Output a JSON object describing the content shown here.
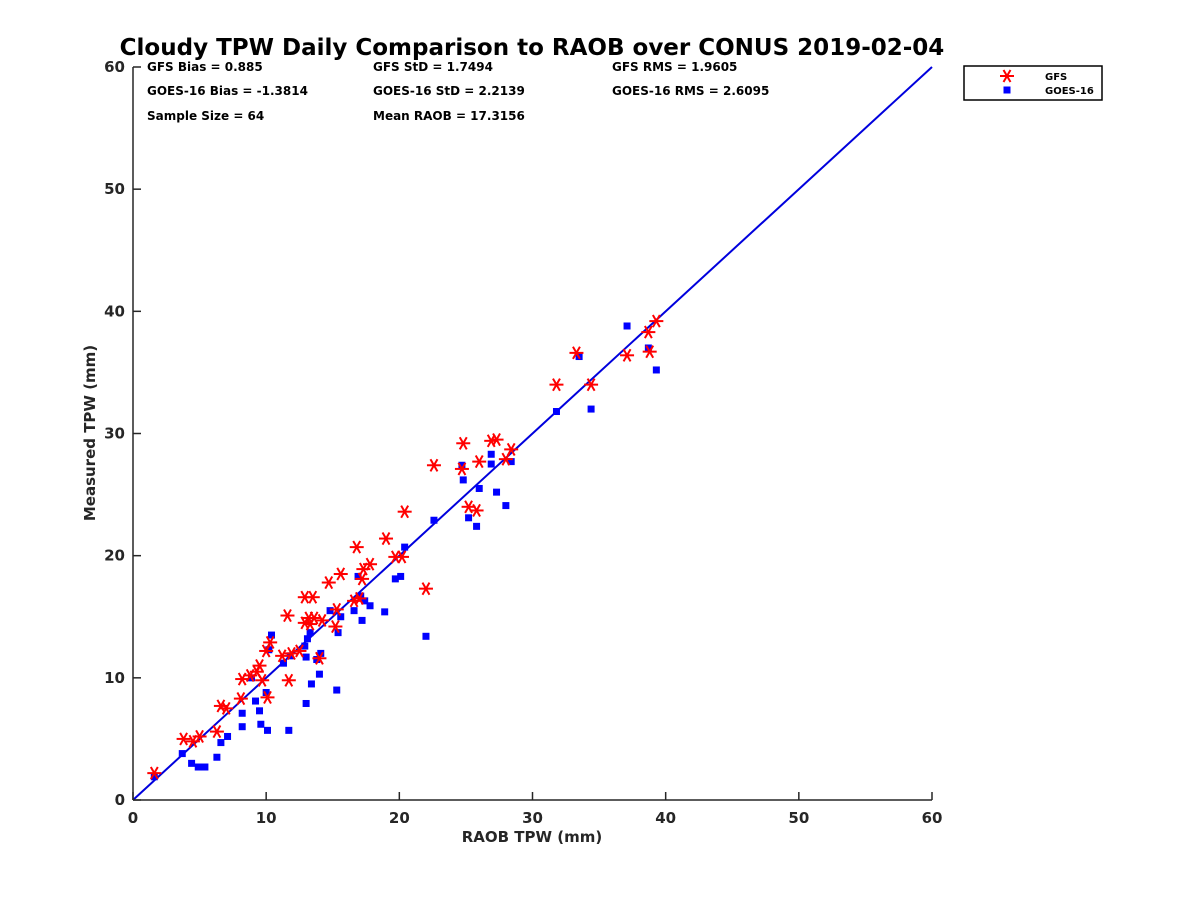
{
  "chart_data": {
    "type": "scatter",
    "title": "Cloudy TPW Daily Comparison to RAOB over CONUS 2019-02-04",
    "xlabel": "RAOB TPW (mm)",
    "ylabel": "Measured TPW (mm)",
    "xlim": [
      0,
      60
    ],
    "ylim": [
      0,
      60
    ],
    "xticks": [
      0,
      10,
      20,
      30,
      40,
      50,
      60
    ],
    "yticks": [
      0,
      10,
      20,
      30,
      40,
      50,
      60
    ],
    "grid": false,
    "legend_position": "outside-top-right",
    "reference_line": {
      "from": [
        0,
        0
      ],
      "to": [
        60,
        60
      ],
      "color": "#0000dd"
    },
    "stats": [
      "GFS Bias = 0.885",
      "GFS StD = 1.7494",
      "GFS RMS = 1.9605",
      "GOES-16 Bias = -1.3814",
      "GOES-16 StD = 2.2139",
      "GOES-16 RMS = 2.6095",
      "Sample Size = 64",
      "Mean RAOB = 17.3156"
    ],
    "series": [
      {
        "name": "GFS",
        "marker": "asterisk",
        "color": "#ff0000",
        "points": [
          [
            1.6,
            2.2
          ],
          [
            3.8,
            5.0
          ],
          [
            4.5,
            4.8
          ],
          [
            5.0,
            5.2
          ],
          [
            6.3,
            5.6
          ],
          [
            6.6,
            7.7
          ],
          [
            7.0,
            7.5
          ],
          [
            8.1,
            8.3
          ],
          [
            8.2,
            9.9
          ],
          [
            8.8,
            10.2
          ],
          [
            9.3,
            10.5
          ],
          [
            9.5,
            11.0
          ],
          [
            9.7,
            9.8
          ],
          [
            10.0,
            12.2
          ],
          [
            10.1,
            8.4
          ],
          [
            10.3,
            12.9
          ],
          [
            11.2,
            11.8
          ],
          [
            11.6,
            15.1
          ],
          [
            11.7,
            9.8
          ],
          [
            11.9,
            12.0
          ],
          [
            12.5,
            12.2
          ],
          [
            12.9,
            14.5
          ],
          [
            12.9,
            16.6
          ],
          [
            13.2,
            14.9
          ],
          [
            13.3,
            14.4
          ],
          [
            13.5,
            16.6
          ],
          [
            13.6,
            14.9
          ],
          [
            14.0,
            11.6
          ],
          [
            14.2,
            14.7
          ],
          [
            14.7,
            17.8
          ],
          [
            15.2,
            14.2
          ],
          [
            15.3,
            15.6
          ],
          [
            15.6,
            18.5
          ],
          [
            16.6,
            16.3
          ],
          [
            16.8,
            20.7
          ],
          [
            17.0,
            16.5
          ],
          [
            17.2,
            18.1
          ],
          [
            17.3,
            18.9
          ],
          [
            17.8,
            19.3
          ],
          [
            19.0,
            21.4
          ],
          [
            19.7,
            19.9
          ],
          [
            20.2,
            19.9
          ],
          [
            20.4,
            23.6
          ],
          [
            22.0,
            17.3
          ],
          [
            22.6,
            27.4
          ],
          [
            24.7,
            27.1
          ],
          [
            24.8,
            29.2
          ],
          [
            25.2,
            24.0
          ],
          [
            25.8,
            23.7
          ],
          [
            26.0,
            27.7
          ],
          [
            26.9,
            29.4
          ],
          [
            27.3,
            29.5
          ],
          [
            28.0,
            27.9
          ],
          [
            28.4,
            28.7
          ],
          [
            31.8,
            34.0
          ],
          [
            33.3,
            36.6
          ],
          [
            34.4,
            34.0
          ],
          [
            37.1,
            36.4
          ],
          [
            38.7,
            38.3
          ],
          [
            38.8,
            36.7
          ],
          [
            39.3,
            39.2
          ]
        ]
      },
      {
        "name": "GOES-16",
        "marker": "square",
        "color": "#0000ff",
        "points": [
          [
            1.6,
            1.9
          ],
          [
            3.7,
            3.8
          ],
          [
            4.4,
            3.0
          ],
          [
            4.9,
            2.7
          ],
          [
            5.4,
            2.7
          ],
          [
            6.3,
            3.5
          ],
          [
            6.6,
            4.7
          ],
          [
            7.1,
            5.2
          ],
          [
            8.2,
            6.0
          ],
          [
            8.2,
            7.1
          ],
          [
            8.9,
            10.0
          ],
          [
            9.2,
            8.1
          ],
          [
            9.5,
            7.3
          ],
          [
            9.6,
            6.2
          ],
          [
            10.0,
            8.8
          ],
          [
            10.1,
            5.7
          ],
          [
            10.2,
            12.3
          ],
          [
            10.4,
            13.5
          ],
          [
            11.3,
            11.2
          ],
          [
            11.7,
            5.7
          ],
          [
            11.8,
            11.8
          ],
          [
            12.9,
            12.6
          ],
          [
            13.0,
            11.7
          ],
          [
            13.0,
            7.9
          ],
          [
            13.1,
            13.2
          ],
          [
            13.3,
            13.7
          ],
          [
            13.4,
            9.5
          ],
          [
            13.8,
            11.5
          ],
          [
            14.0,
            10.3
          ],
          [
            14.1,
            12.0
          ],
          [
            14.8,
            15.5
          ],
          [
            15.3,
            9.0
          ],
          [
            15.4,
            13.7
          ],
          [
            15.6,
            15.0
          ],
          [
            16.6,
            15.5
          ],
          [
            16.9,
            18.3
          ],
          [
            17.1,
            16.7
          ],
          [
            17.2,
            14.7
          ],
          [
            17.4,
            16.3
          ],
          [
            17.8,
            15.9
          ],
          [
            18.9,
            15.4
          ],
          [
            19.7,
            18.1
          ],
          [
            20.1,
            18.3
          ],
          [
            20.4,
            20.7
          ],
          [
            22.0,
            13.4
          ],
          [
            22.6,
            22.9
          ],
          [
            24.7,
            27.4
          ],
          [
            24.8,
            26.2
          ],
          [
            25.2,
            23.1
          ],
          [
            25.8,
            22.4
          ],
          [
            26.0,
            25.5
          ],
          [
            26.9,
            28.3
          ],
          [
            26.9,
            27.5
          ],
          [
            27.3,
            25.2
          ],
          [
            28.0,
            24.1
          ],
          [
            28.4,
            27.7
          ],
          [
            31.8,
            31.8
          ],
          [
            33.5,
            36.3
          ],
          [
            34.4,
            32.0
          ],
          [
            37.1,
            38.8
          ],
          [
            38.7,
            37.0
          ],
          [
            39.3,
            35.2
          ]
        ]
      }
    ]
  }
}
